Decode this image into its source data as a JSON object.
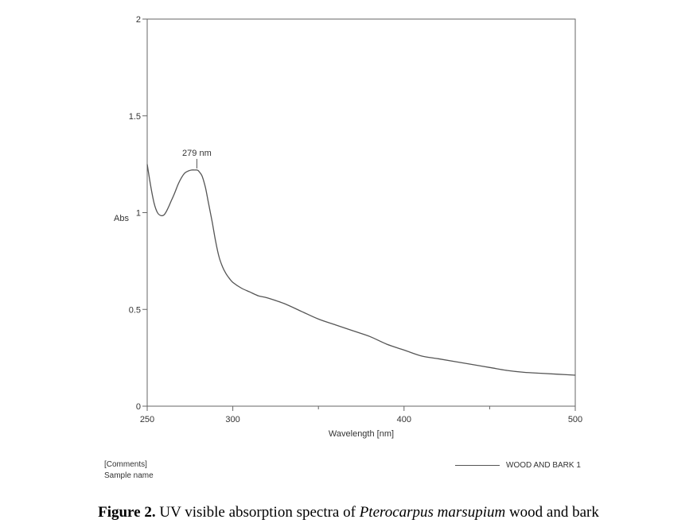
{
  "chart_data": {
    "type": "line",
    "xlabel": "Wavelength [nm]",
    "ylabel": "Abs",
    "xlim": [
      250,
      500
    ],
    "ylim": [
      0,
      2
    ],
    "x_ticks": [
      250,
      300,
      400,
      500
    ],
    "x_minor_ticks": [
      350,
      450
    ],
    "y_ticks": [
      0,
      0.5,
      1,
      1.5,
      2
    ],
    "y_tick_labels": [
      "0",
      "0.5",
      "1",
      "1.5",
      "2"
    ],
    "grid": false,
    "legend_position": "bottom-right",
    "series": [
      {
        "name": "WOOD AND BARK 1",
        "x": [
          250,
          252,
          254,
          256,
          258,
          260,
          262,
          264,
          266,
          268,
          270,
          272,
          274,
          276,
          278,
          279,
          280,
          282,
          284,
          286,
          288,
          290,
          292,
          294,
          296,
          298,
          300,
          305,
          310,
          315,
          320,
          330,
          340,
          350,
          360,
          370,
          380,
          390,
          400,
          410,
          420,
          430,
          440,
          450,
          460,
          470,
          480,
          490,
          500
        ],
        "y": [
          1.25,
          1.14,
          1.05,
          1.0,
          0.985,
          0.99,
          1.02,
          1.06,
          1.1,
          1.145,
          1.18,
          1.205,
          1.215,
          1.22,
          1.22,
          1.22,
          1.215,
          1.19,
          1.13,
          1.04,
          0.95,
          0.85,
          0.77,
          0.72,
          0.685,
          0.66,
          0.64,
          0.61,
          0.59,
          0.57,
          0.56,
          0.53,
          0.49,
          0.45,
          0.42,
          0.39,
          0.36,
          0.32,
          0.29,
          0.26,
          0.245,
          0.23,
          0.215,
          0.2,
          0.185,
          0.175,
          0.17,
          0.165,
          0.16
        ]
      }
    ],
    "annotations": [
      {
        "x": 279,
        "y": 1.22,
        "text": "279 nm"
      }
    ]
  },
  "meta": {
    "comments": "[Comments]",
    "sample_name": "Sample name"
  },
  "caption": {
    "label": "Figure 2.",
    "text_before": " UV visible absorption spectra of ",
    "species": "Pterocarpus marsupium",
    "text_after": " wood and bark"
  }
}
